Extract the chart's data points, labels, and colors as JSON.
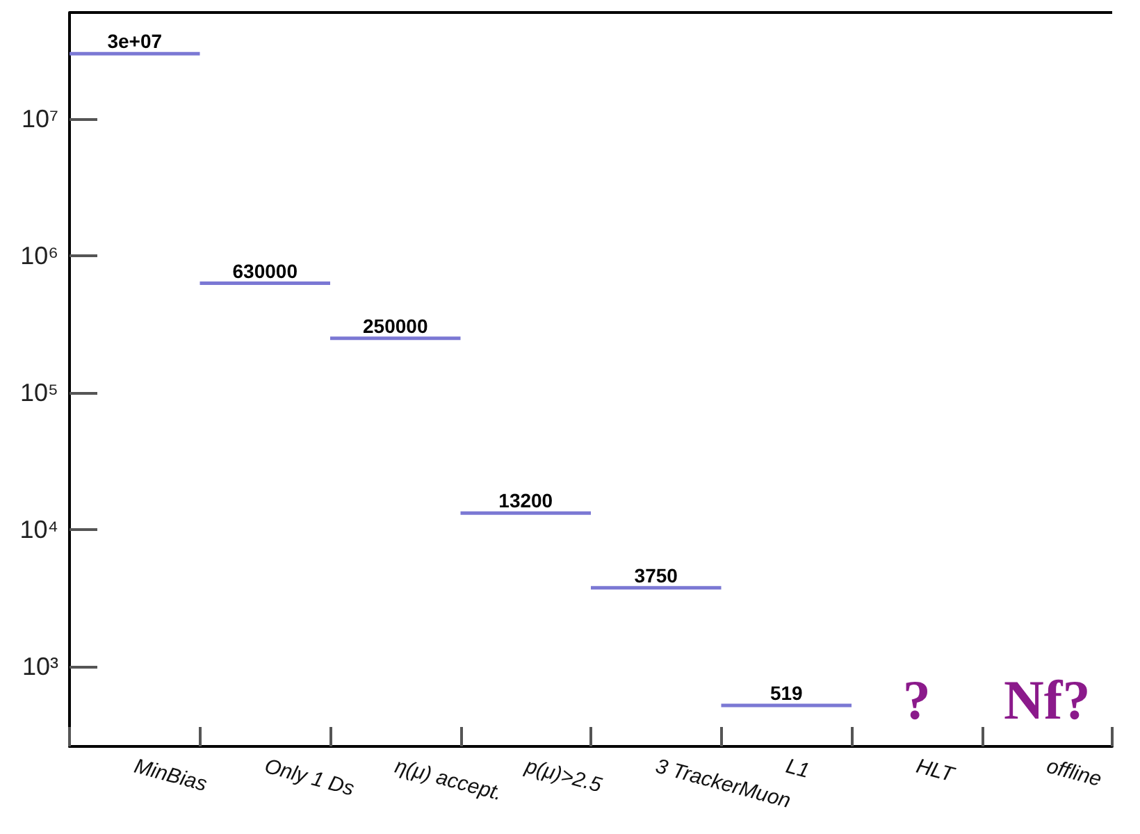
{
  "chart_data": {
    "type": "bar",
    "categories": [
      "MinBias",
      "Only 1 Ds",
      "η(μ) accept.",
      "p(μ)>2.5",
      "3 TrackerMuon",
      "L1",
      "HLT",
      "offline"
    ],
    "series": [
      {
        "color": "#7b78d4",
        "values": [
          30000000,
          630000,
          250000,
          13200,
          3750,
          519,
          null,
          null
        ],
        "value_labels": [
          "3e+07",
          "630000",
          "250000",
          "13200",
          "3750",
          "519",
          null,
          null
        ]
      }
    ],
    "log": "y",
    "ylim": [
      260,
      60000000
    ],
    "yticks": [
      {
        "value": 1000,
        "label": "10³"
      },
      {
        "value": 10000,
        "label": "10⁴"
      },
      {
        "value": 100000,
        "label": "10⁵"
      },
      {
        "value": 1000000,
        "label": "10⁶"
      },
      {
        "value": 10000000,
        "label": "10⁷"
      }
    ],
    "annotations": [
      "?",
      "Nf?"
    ],
    "grid": false
  }
}
